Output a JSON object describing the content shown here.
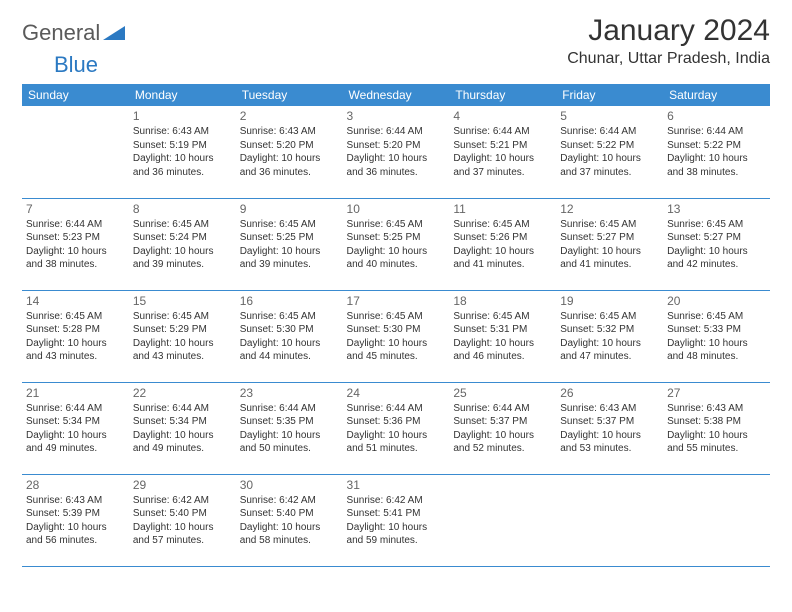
{
  "logo": {
    "part1": "General",
    "part2": "Blue"
  },
  "title": "January 2024",
  "subtitle": "Chunar, Uttar Pradesh, India",
  "colors": {
    "header_bg": "#3a8bd0",
    "header_text": "#ffffff",
    "border": "#3a8bd0",
    "logo_blue": "#2b79c2",
    "logo_gray": "#5a5a5a",
    "text": "#333333",
    "daynum": "#666666"
  },
  "day_headers": [
    "Sunday",
    "Monday",
    "Tuesday",
    "Wednesday",
    "Thursday",
    "Friday",
    "Saturday"
  ],
  "weeks": [
    [
      {
        "n": "",
        "sr": "",
        "ss": "",
        "dl": ""
      },
      {
        "n": "1",
        "sr": "6:43 AM",
        "ss": "5:19 PM",
        "dl": "10 hours and 36 minutes."
      },
      {
        "n": "2",
        "sr": "6:43 AM",
        "ss": "5:20 PM",
        "dl": "10 hours and 36 minutes."
      },
      {
        "n": "3",
        "sr": "6:44 AM",
        "ss": "5:20 PM",
        "dl": "10 hours and 36 minutes."
      },
      {
        "n": "4",
        "sr": "6:44 AM",
        "ss": "5:21 PM",
        "dl": "10 hours and 37 minutes."
      },
      {
        "n": "5",
        "sr": "6:44 AM",
        "ss": "5:22 PM",
        "dl": "10 hours and 37 minutes."
      },
      {
        "n": "6",
        "sr": "6:44 AM",
        "ss": "5:22 PM",
        "dl": "10 hours and 38 minutes."
      }
    ],
    [
      {
        "n": "7",
        "sr": "6:44 AM",
        "ss": "5:23 PM",
        "dl": "10 hours and 38 minutes."
      },
      {
        "n": "8",
        "sr": "6:45 AM",
        "ss": "5:24 PM",
        "dl": "10 hours and 39 minutes."
      },
      {
        "n": "9",
        "sr": "6:45 AM",
        "ss": "5:25 PM",
        "dl": "10 hours and 39 minutes."
      },
      {
        "n": "10",
        "sr": "6:45 AM",
        "ss": "5:25 PM",
        "dl": "10 hours and 40 minutes."
      },
      {
        "n": "11",
        "sr": "6:45 AM",
        "ss": "5:26 PM",
        "dl": "10 hours and 41 minutes."
      },
      {
        "n": "12",
        "sr": "6:45 AM",
        "ss": "5:27 PM",
        "dl": "10 hours and 41 minutes."
      },
      {
        "n": "13",
        "sr": "6:45 AM",
        "ss": "5:27 PM",
        "dl": "10 hours and 42 minutes."
      }
    ],
    [
      {
        "n": "14",
        "sr": "6:45 AM",
        "ss": "5:28 PM",
        "dl": "10 hours and 43 minutes."
      },
      {
        "n": "15",
        "sr": "6:45 AM",
        "ss": "5:29 PM",
        "dl": "10 hours and 43 minutes."
      },
      {
        "n": "16",
        "sr": "6:45 AM",
        "ss": "5:30 PM",
        "dl": "10 hours and 44 minutes."
      },
      {
        "n": "17",
        "sr": "6:45 AM",
        "ss": "5:30 PM",
        "dl": "10 hours and 45 minutes."
      },
      {
        "n": "18",
        "sr": "6:45 AM",
        "ss": "5:31 PM",
        "dl": "10 hours and 46 minutes."
      },
      {
        "n": "19",
        "sr": "6:45 AM",
        "ss": "5:32 PM",
        "dl": "10 hours and 47 minutes."
      },
      {
        "n": "20",
        "sr": "6:45 AM",
        "ss": "5:33 PM",
        "dl": "10 hours and 48 minutes."
      }
    ],
    [
      {
        "n": "21",
        "sr": "6:44 AM",
        "ss": "5:34 PM",
        "dl": "10 hours and 49 minutes."
      },
      {
        "n": "22",
        "sr": "6:44 AM",
        "ss": "5:34 PM",
        "dl": "10 hours and 49 minutes."
      },
      {
        "n": "23",
        "sr": "6:44 AM",
        "ss": "5:35 PM",
        "dl": "10 hours and 50 minutes."
      },
      {
        "n": "24",
        "sr": "6:44 AM",
        "ss": "5:36 PM",
        "dl": "10 hours and 51 minutes."
      },
      {
        "n": "25",
        "sr": "6:44 AM",
        "ss": "5:37 PM",
        "dl": "10 hours and 52 minutes."
      },
      {
        "n": "26",
        "sr": "6:43 AM",
        "ss": "5:37 PM",
        "dl": "10 hours and 53 minutes."
      },
      {
        "n": "27",
        "sr": "6:43 AM",
        "ss": "5:38 PM",
        "dl": "10 hours and 55 minutes."
      }
    ],
    [
      {
        "n": "28",
        "sr": "6:43 AM",
        "ss": "5:39 PM",
        "dl": "10 hours and 56 minutes."
      },
      {
        "n": "29",
        "sr": "6:42 AM",
        "ss": "5:40 PM",
        "dl": "10 hours and 57 minutes."
      },
      {
        "n": "30",
        "sr": "6:42 AM",
        "ss": "5:40 PM",
        "dl": "10 hours and 58 minutes."
      },
      {
        "n": "31",
        "sr": "6:42 AM",
        "ss": "5:41 PM",
        "dl": "10 hours and 59 minutes."
      },
      {
        "n": "",
        "sr": "",
        "ss": "",
        "dl": ""
      },
      {
        "n": "",
        "sr": "",
        "ss": "",
        "dl": ""
      },
      {
        "n": "",
        "sr": "",
        "ss": "",
        "dl": ""
      }
    ]
  ],
  "labels": {
    "sunrise": "Sunrise: ",
    "sunset": "Sunset: ",
    "daylight": "Daylight: "
  }
}
